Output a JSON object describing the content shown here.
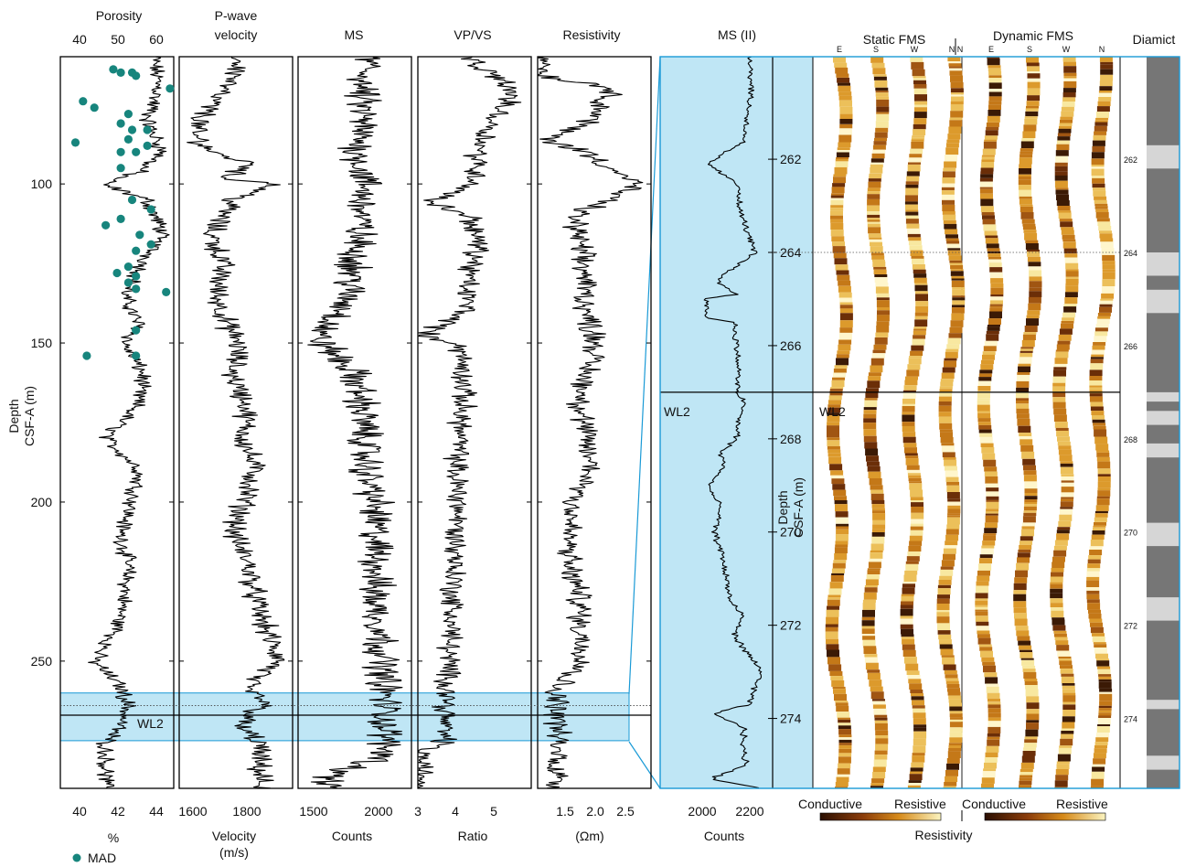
{
  "colors": {
    "highlight_fill": "#bfe6f5",
    "highlight_stroke": "#1a9ad6",
    "mad_dot": "#17857d",
    "diamict_dark": "#767676",
    "diamict_light": "#d6d6d6",
    "fms_dark": "#3b1a05",
    "fms_mid": "#c47818",
    "fms_light": "#f8e8a0"
  },
  "chart_data": [
    {
      "panel": "porosity",
      "type": "line",
      "title": "Porosity",
      "top_ticks": [
        "40",
        "50",
        "60"
      ],
      "bottom_ticks": [
        "40",
        "42",
        "44"
      ],
      "xlabel": "%",
      "legend_label": "MAD",
      "ylabel_line1": "Depth",
      "ylabel_line2": "CSF-A (m)",
      "y_ticks": [
        "100",
        "150",
        "200",
        "250"
      ],
      "ylim": [
        60,
        290
      ],
      "top_xlim": [
        35,
        65
      ],
      "profile": [
        [
          62,
          60
        ],
        [
          70,
          61
        ],
        [
          80,
          58
        ],
        [
          90,
          62
        ],
        [
          96,
          56
        ],
        [
          100,
          46
        ],
        [
          105,
          58
        ],
        [
          115,
          62
        ],
        [
          125,
          57
        ],
        [
          135,
          52
        ],
        [
          145,
          56
        ],
        [
          150,
          52
        ],
        [
          160,
          57
        ],
        [
          170,
          55
        ],
        [
          180,
          47
        ],
        [
          190,
          56
        ],
        [
          200,
          54
        ],
        [
          210,
          51
        ],
        [
          220,
          53
        ],
        [
          230,
          52
        ],
        [
          240,
          50
        ],
        [
          250,
          44
        ],
        [
          258,
          51
        ],
        [
          264,
          53
        ],
        [
          270,
          51
        ],
        [
          276,
          47
        ],
        [
          280,
          47
        ],
        [
          286,
          47
        ]
      ],
      "mad_points": [
        [
          64,
          49
        ],
        [
          65,
          51
        ],
        [
          65,
          54
        ],
        [
          66,
          55
        ],
        [
          70,
          64
        ],
        [
          74,
          41
        ],
        [
          76,
          44
        ],
        [
          78,
          53
        ],
        [
          81,
          51
        ],
        [
          83,
          54
        ],
        [
          83,
          58
        ],
        [
          86,
          53
        ],
        [
          87,
          39
        ],
        [
          88,
          58
        ],
        [
          90,
          51
        ],
        [
          90,
          55
        ],
        [
          95,
          51
        ],
        [
          105,
          54
        ],
        [
          108,
          59
        ],
        [
          111,
          51
        ],
        [
          113,
          47
        ],
        [
          116,
          56
        ],
        [
          119,
          59
        ],
        [
          121,
          55
        ],
        [
          126,
          53
        ],
        [
          128,
          50
        ],
        [
          129,
          55
        ],
        [
          131,
          53
        ],
        [
          133,
          55
        ],
        [
          134,
          63
        ],
        [
          146,
          55
        ],
        [
          154,
          42
        ],
        [
          154,
          55
        ]
      ]
    },
    {
      "panel": "pwave",
      "type": "line",
      "title_line1": "P-wave",
      "title_line2": "velocity",
      "bottom_ticks": [
        "1600",
        "1800"
      ],
      "xlabel_line1": "Velocity",
      "xlabel_line2": "(m/s)",
      "xlim": [
        1540,
        1960
      ],
      "profile": [
        [
          62,
          1760
        ],
        [
          66,
          1750
        ],
        [
          72,
          1680
        ],
        [
          80,
          1620
        ],
        [
          84,
          1590
        ],
        [
          90,
          1660
        ],
        [
          94,
          1820
        ],
        [
          98,
          1700
        ],
        [
          100,
          1900
        ],
        [
          105,
          1740
        ],
        [
          115,
          1660
        ],
        [
          125,
          1700
        ],
        [
          135,
          1680
        ],
        [
          145,
          1720
        ],
        [
          150,
          1760
        ],
        [
          160,
          1740
        ],
        [
          170,
          1790
        ],
        [
          180,
          1780
        ],
        [
          190,
          1820
        ],
        [
          200,
          1780
        ],
        [
          210,
          1740
        ],
        [
          220,
          1800
        ],
        [
          230,
          1820
        ],
        [
          240,
          1860
        ],
        [
          250,
          1910
        ],
        [
          258,
          1780
        ],
        [
          263,
          1860
        ],
        [
          270,
          1760
        ],
        [
          276,
          1840
        ],
        [
          280,
          1830
        ],
        [
          286,
          1840
        ]
      ]
    },
    {
      "panel": "ms",
      "type": "line",
      "title": "MS",
      "bottom_ticks": [
        "1500",
        "2000"
      ],
      "xlabel": "Counts",
      "xlim": [
        1450,
        2350
      ],
      "profile": [
        [
          62,
          2010
        ],
        [
          70,
          1950
        ],
        [
          80,
          1960
        ],
        [
          90,
          1920
        ],
        [
          100,
          1980
        ],
        [
          110,
          1950
        ],
        [
          120,
          1920
        ],
        [
          130,
          1880
        ],
        [
          140,
          1800
        ],
        [
          148,
          1600
        ],
        [
          152,
          1700
        ],
        [
          160,
          1900
        ],
        [
          170,
          1960
        ],
        [
          180,
          1980
        ],
        [
          190,
          1990
        ],
        [
          200,
          2060
        ],
        [
          210,
          2060
        ],
        [
          220,
          2080
        ],
        [
          230,
          2060
        ],
        [
          240,
          2100
        ],
        [
          250,
          2120
        ],
        [
          260,
          2140
        ],
        [
          270,
          2140
        ],
        [
          280,
          2150
        ],
        [
          286,
          1700
        ]
      ]
    },
    {
      "panel": "vpvs",
      "type": "line",
      "title": "VP/VS",
      "bottom_ticks": [
        "3",
        "4",
        "5"
      ],
      "xlabel": "Ratio",
      "xlim": [
        3,
        6
      ],
      "profile": [
        [
          62,
          4.4
        ],
        [
          68,
          5.3
        ],
        [
          72,
          5.5
        ],
        [
          80,
          5.0
        ],
        [
          90,
          4.6
        ],
        [
          100,
          4.5
        ],
        [
          106,
          3.3
        ],
        [
          110,
          4.4
        ],
        [
          120,
          4.6
        ],
        [
          130,
          4.3
        ],
        [
          140,
          4.3
        ],
        [
          148,
          3.1
        ],
        [
          150,
          4.1
        ],
        [
          160,
          4.2
        ],
        [
          170,
          4.2
        ],
        [
          180,
          4.1
        ],
        [
          190,
          4.0
        ],
        [
          200,
          4.1
        ],
        [
          210,
          4.0
        ],
        [
          220,
          4.0
        ],
        [
          230,
          3.9
        ],
        [
          240,
          3.9
        ],
        [
          250,
          3.8
        ],
        [
          260,
          3.8
        ],
        [
          270,
          3.7
        ],
        [
          276,
          3.7
        ],
        [
          278,
          3.1
        ],
        [
          286,
          3.1
        ]
      ]
    },
    {
      "panel": "resistivity",
      "type": "line",
      "title": "Resistivity",
      "bottom_ticks": [
        "1.5",
        "2.0",
        "2.5"
      ],
      "xlabel": "(Ωm)",
      "xlim": [
        0.95,
        2.95
      ],
      "profile": [
        [
          62,
          1.1
        ],
        [
          66,
          1.05
        ],
        [
          70,
          2.3
        ],
        [
          80,
          1.9
        ],
        [
          86,
          1.1
        ],
        [
          90,
          1.8
        ],
        [
          100,
          2.7
        ],
        [
          110,
          1.6
        ],
        [
          120,
          1.7
        ],
        [
          130,
          1.8
        ],
        [
          140,
          1.8
        ],
        [
          150,
          2.0
        ],
        [
          160,
          1.8
        ],
        [
          170,
          1.7
        ],
        [
          180,
          1.8
        ],
        [
          190,
          1.9
        ],
        [
          200,
          1.6
        ],
        [
          210,
          1.5
        ],
        [
          220,
          1.5
        ],
        [
          230,
          1.7
        ],
        [
          240,
          1.7
        ],
        [
          250,
          1.8
        ],
        [
          258,
          1.3
        ],
        [
          262,
          1.3
        ],
        [
          270,
          1.3
        ],
        [
          286,
          1.3
        ]
      ]
    },
    {
      "panel": "ms2",
      "type": "line",
      "title": "MS (II)",
      "bottom_ticks": [
        "2000",
        "2200"
      ],
      "xlabel": "Counts",
      "xlim": [
        1760,
        2320
      ],
      "y_ticks": [
        "262",
        "264",
        "266",
        "268",
        "270",
        "272",
        "274"
      ],
      "ylabel_line1": "Depth",
      "ylabel_line2": "CSF-A (m)",
      "ylim": [
        259.8,
        275.5
      ],
      "profile": [
        [
          259.8,
          2210
        ],
        [
          260.5,
          2215
        ],
        [
          261.2,
          2190
        ],
        [
          261.6,
          2180
        ],
        [
          261.9,
          2060
        ],
        [
          262.1,
          2000
        ],
        [
          262.6,
          2160
        ],
        [
          263.0,
          2150
        ],
        [
          263.5,
          2190
        ],
        [
          264.0,
          2230
        ],
        [
          264.3,
          2140
        ],
        [
          264.6,
          2040
        ],
        [
          264.9,
          2140
        ],
        [
          265.0,
          1990
        ],
        [
          265.4,
          1990
        ],
        [
          265.5,
          2130
        ],
        [
          266.0,
          2140
        ],
        [
          266.5,
          2150
        ],
        [
          267.0,
          2140
        ],
        [
          267.2,
          2180
        ],
        [
          267.6,
          2150
        ],
        [
          268.0,
          2140
        ],
        [
          268.3,
          2060
        ],
        [
          268.6,
          2080
        ],
        [
          269.0,
          2000
        ],
        [
          269.5,
          2060
        ],
        [
          270.0,
          2030
        ],
        [
          270.5,
          2070
        ],
        [
          271.0,
          2090
        ],
        [
          271.5,
          2110
        ],
        [
          271.8,
          2170
        ],
        [
          272.2,
          2130
        ],
        [
          272.6,
          2190
        ],
        [
          273.0,
          2270
        ],
        [
          273.3,
          2230
        ],
        [
          273.7,
          2200
        ],
        [
          273.9,
          2020
        ],
        [
          274.2,
          2180
        ],
        [
          274.6,
          2170
        ],
        [
          275.0,
          2190
        ],
        [
          275.3,
          2010
        ],
        [
          275.5,
          2280
        ]
      ]
    },
    {
      "panel": "fms",
      "type": "image",
      "static_title": "Static FMS",
      "dynamic_title": "Dynamic FMS",
      "direction_labels": [
        "E",
        "S",
        "W",
        "N"
      ],
      "colorbar_left": "Conductive",
      "colorbar_right": "Resistive",
      "colorbar_title": "Resistivity"
    },
    {
      "panel": "diamict",
      "type": "column",
      "title": "Diamict",
      "y_ticks": [
        "262",
        "264",
        "266",
        "268",
        "270",
        "272",
        "274"
      ],
      "light_intervals": [
        [
          261.7,
          262.2
        ],
        [
          264.0,
          264.5
        ],
        [
          264.8,
          265.3
        ],
        [
          267.0,
          267.2
        ],
        [
          267.4,
          267.7
        ],
        [
          268.1,
          268.4
        ],
        [
          269.8,
          270.3
        ],
        [
          271.4,
          271.9
        ],
        [
          273.6,
          273.8
        ],
        [
          274.8,
          275.1
        ]
      ]
    }
  ],
  "markers": {
    "wl2_label": "WL2",
    "wl2_depth": 267,
    "wl2_overview_depth": 267,
    "dotted_depth": 264,
    "highlight_range": [
      260,
      275
    ]
  }
}
